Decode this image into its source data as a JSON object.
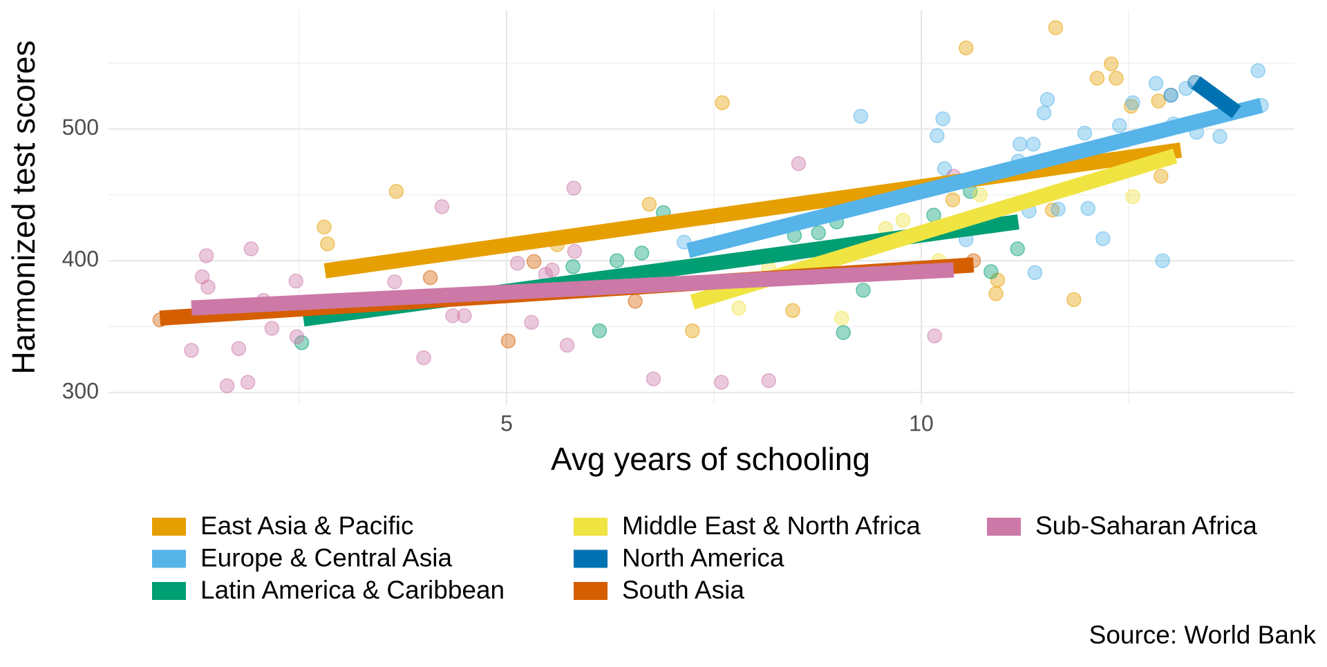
{
  "chart_data": {
    "type": "scatter",
    "xlabel": "Avg years of schooling",
    "ylabel": "Harmonized test scores",
    "caption": "Source: World Bank",
    "xlim": [
      0.2,
      14.5
    ],
    "xticks": [
      5,
      10
    ],
    "xminor": [
      2.5,
      7.5,
      12.5
    ],
    "ylim": [
      291,
      590
    ],
    "yticks": [
      300,
      400,
      500
    ],
    "yminor": [
      350,
      450,
      550
    ],
    "grid": true,
    "series": [
      {
        "name": "East Asia & Pacific",
        "color": "#E69F00",
        "x": [
          2.8,
          2.84,
          3.67,
          7.6,
          10.54,
          11.62,
          12.29,
          12.12,
          12.35,
          12.53,
          12.86,
          12.89,
          10.38,
          10.92,
          10.9,
          11.84,
          11.58,
          8.45,
          7.24,
          6.72,
          5.61
        ],
        "values": [
          425.6,
          412.8,
          452.6,
          519.9,
          561.5,
          576.9,
          549.4,
          538.5,
          538.5,
          517.3,
          521.2,
          464.1,
          446.2,
          385.3,
          375.0,
          370.5,
          438.5,
          362.2,
          346.8,
          442.9,
          412.2
        ],
        "trend": {
          "x": [
            2.81,
            13.13
          ],
          "y": [
            392.3,
            484.0
          ]
        }
      },
      {
        "name": "Europe & Central Asia",
        "color": "#56B4E9",
        "x": [
          9.27,
          10.26,
          10.19,
          10.28,
          10.54,
          11.3,
          11.37,
          11.17,
          11.19,
          11.35,
          11.52,
          11.48,
          11.97,
          12.01,
          12.19,
          12.39,
          12.55,
          12.83,
          12.91,
          13.04,
          13.19,
          13.32,
          13.6,
          14.06,
          14.1,
          7.14,
          11.65
        ],
        "values": [
          509.6,
          507.7,
          494.9,
          469.9,
          416.0,
          437.8,
          391.0,
          475.6,
          488.5,
          488.5,
          522.4,
          512.2,
          496.8,
          439.7,
          416.7,
          502.6,
          519.9,
          534.6,
          400.0,
          503.8,
          530.8,
          497.4,
          494.2,
          544.2,
          517.9,
          414.1,
          439.1
        ],
        "trend": {
          "x": [
            7.19,
            14.1
          ],
          "y": [
            407.7,
            517.9
          ]
        }
      },
      {
        "name": "Latin America & Caribbean",
        "color": "#009E73",
        "x": [
          2.53,
          6.12,
          6.89,
          6.33,
          6.63,
          5.8,
          8.47,
          8.76,
          8.98,
          9.06,
          9.3,
          10.59,
          10.84,
          11.16,
          10.15
        ],
        "values": [
          337.8,
          346.8,
          436.5,
          400.0,
          405.8,
          395.5,
          419.2,
          421.2,
          429.5,
          345.5,
          377.6,
          452.6,
          391.7,
          409.0,
          434.6
        ],
        "trend": {
          "x": [
            2.55,
            11.17
          ],
          "y": [
            355.8,
            429.5
          ]
        }
      },
      {
        "name": "Middle East & North Africa",
        "color": "#F0E442",
        "x": [
          7.8,
          8.16,
          9.04,
          9.57,
          9.78,
          10.21,
          12.55,
          10.71
        ],
        "values": [
          364.1,
          394.2,
          356.4,
          424.4,
          430.8,
          400.0,
          448.7,
          450.0
        ],
        "trend": {
          "x": [
            7.24,
            13.06
          ],
          "y": [
            368.6,
            479.5
          ]
        }
      },
      {
        "name": "North America",
        "color": "#0072B2",
        "x": [
          13.3,
          13.01
        ],
        "values": [
          535.3,
          525.6
        ],
        "trend": {
          "x": [
            13.31,
            13.8
          ],
          "y": [
            535.3,
            512.8
          ]
        }
      },
      {
        "name": "South Asia",
        "color": "#D55E00",
        "x": [
          0.82,
          4.08,
          5.02,
          5.33,
          6.55,
          10.63
        ],
        "values": [
          355.1,
          387.2,
          339.1,
          399.4,
          369.2,
          400.0
        ],
        "trend": {
          "x": [
            0.82,
            10.63
          ],
          "y": [
            356.4,
            396.8
          ]
        }
      },
      {
        "name": "Sub-Saharan Africa",
        "color": "#CC79A7",
        "x": [
          1.2,
          1.33,
          1.38,
          1.4,
          1.63,
          1.77,
          1.88,
          1.92,
          2.07,
          2.17,
          2.47,
          2.46,
          3.65,
          4.0,
          4.22,
          4.35,
          4.49,
          5.13,
          5.3,
          5.47,
          5.55,
          5.73,
          5.81,
          5.82,
          6.77,
          7.59,
          8.16,
          8.52,
          10.16,
          10.39,
          8.69
        ],
        "values": [
          332.0,
          387.8,
          403.8,
          380.1,
          305.1,
          333.3,
          307.7,
          409.0,
          369.9,
          348.7,
          342.3,
          384.6,
          384.0,
          326.3,
          441.0,
          358.3,
          358.3,
          398.1,
          353.2,
          389.7,
          393.0,
          335.9,
          455.1,
          407.1,
          310.3,
          307.7,
          309.0,
          473.7,
          342.9,
          464.1,
          387.2
        ],
        "trend": {
          "x": [
            1.2,
            10.39
          ],
          "y": [
            364.1,
            393.0
          ]
        }
      }
    ]
  }
}
